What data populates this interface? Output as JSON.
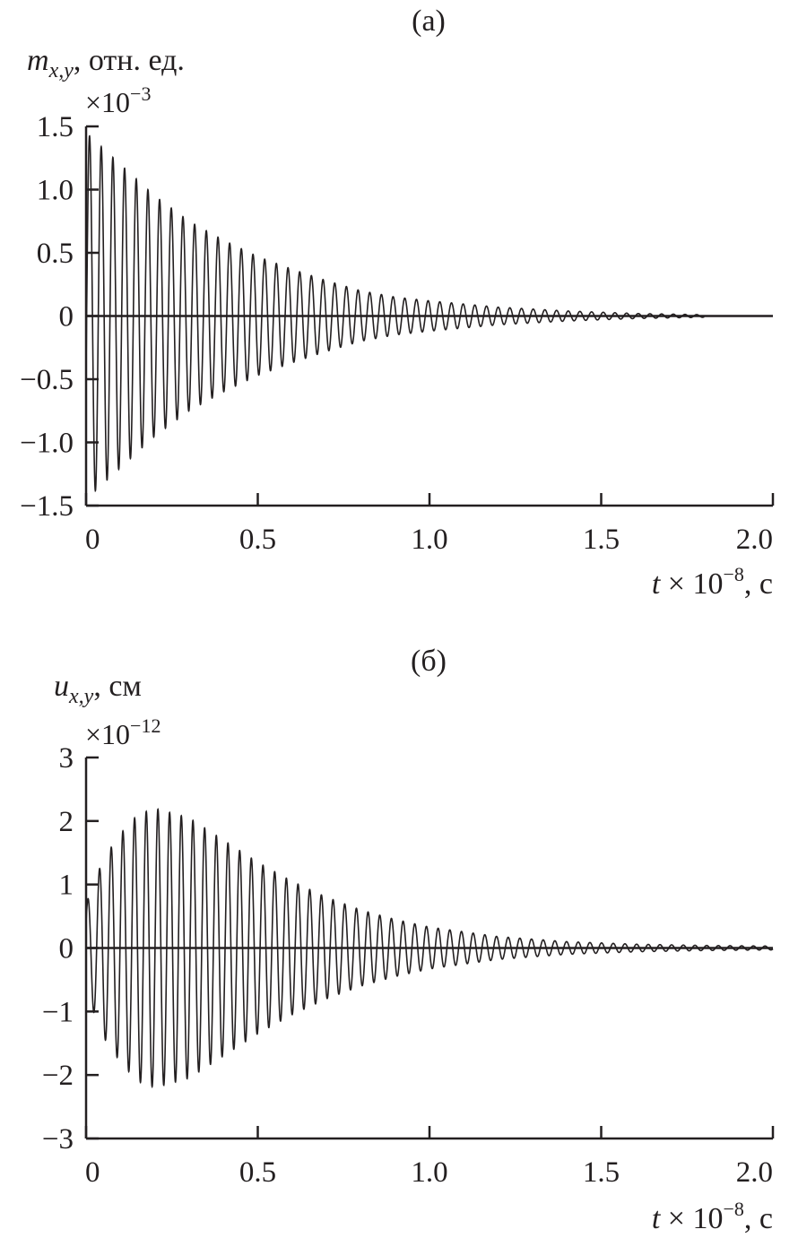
{
  "chart_data": [
    {
      "type": "line",
      "title": "(a)",
      "ylabel": "m",
      "ylabel_sub": "x,y",
      "ylabel_unit": ", отн. ед.",
      "y_multiplier": "×10",
      "y_multiplier_exp": "−3",
      "xlabel": "t",
      "xlabel_rest": " × 10",
      "xlabel_exp": "−8",
      "xlabel_unit": ", с",
      "xlim": [
        0,
        2.0
      ],
      "ylim": [
        -1.5,
        1.5
      ],
      "xticks": [
        "0",
        "0.5",
        "1.0",
        "1.5",
        "2.0"
      ],
      "yticks": [
        "1.5",
        "1.0",
        "0.5",
        "0",
        "−0.5",
        "−1.0",
        "−1.5"
      ],
      "grid": false,
      "oscillation_period": 0.034,
      "signal_end": 1.8,
      "envelope": {
        "t": [
          0,
          0.1,
          0.2,
          0.3,
          0.4,
          0.5,
          0.6,
          0.7,
          0.8,
          0.9,
          1.0,
          1.2,
          1.4,
          1.6,
          1.8,
          2.0
        ],
        "amplitude": [
          1.45,
          1.2,
          0.95,
          0.75,
          0.6,
          0.47,
          0.37,
          0.28,
          0.2,
          0.15,
          0.12,
          0.07,
          0.04,
          0.02,
          0.01,
          0
        ]
      }
    },
    {
      "type": "line",
      "title": "(б)",
      "ylabel": "u",
      "ylabel_sub": "x,y",
      "ylabel_unit": ", см",
      "y_multiplier": "×10",
      "y_multiplier_exp": "−12",
      "xlabel": "t",
      "xlabel_rest": " × 10",
      "xlabel_exp": "−8",
      "xlabel_unit": ", с",
      "xlim": [
        0,
        2.0
      ],
      "ylim": [
        -3,
        3
      ],
      "xticks": [
        "0",
        "0.5",
        "1.0",
        "1.5",
        "2.0"
      ],
      "yticks": [
        "3",
        "2",
        "1",
        "0",
        "−1",
        "−2",
        "−3"
      ],
      "grid": false,
      "oscillation_period": 0.034,
      "signal_end": 2.0,
      "envelope": {
        "t": [
          0,
          0.05,
          0.1,
          0.15,
          0.2,
          0.3,
          0.4,
          0.5,
          0.6,
          0.7,
          0.8,
          0.9,
          1.0,
          1.2,
          1.4,
          1.6,
          1.8,
          2.0
        ],
        "amplitude": [
          0.7,
          1.4,
          1.8,
          2.1,
          2.2,
          2.05,
          1.7,
          1.35,
          1.05,
          0.8,
          0.6,
          0.45,
          0.33,
          0.18,
          0.1,
          0.06,
          0.04,
          0.03
        ]
      }
    }
  ]
}
